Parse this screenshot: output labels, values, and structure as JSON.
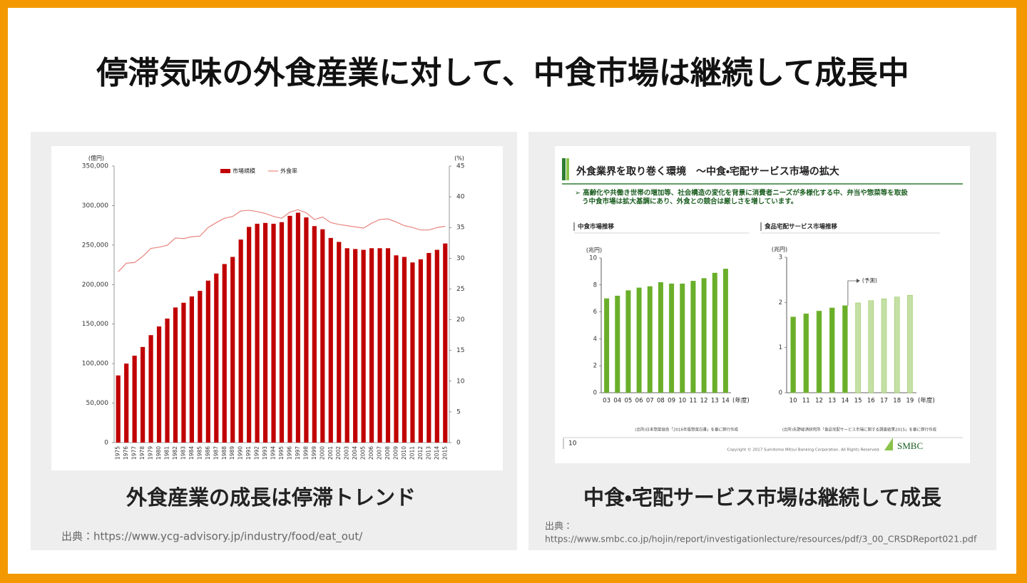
{
  "title": "停滞気味の外食産業に対して、中食市場は継続して成長中",
  "panels": [
    {
      "caption": "外食産業の成長は停滞トレンド",
      "source": "出典：https://www.ycg-advisory.jp/industry/food/eat_out/"
    },
    {
      "caption": "中食・宅配サービス市場は継続して成長",
      "source_label": "出典：",
      "source_url": "https://www.smbc.co.jp/hojin/report/investigationlecture/resources/pdf/3_00_CRSDReport021.pdf"
    }
  ],
  "slide": {
    "header": "外食業界を取り巻く環境　～中食・宅配サービス市場の拡大",
    "bullets": [
      "➢ 高齢化や共働き世帯の増加等、社会構造の変化を背景に消費者ニーズが多様化する中、弁当や惣菜等を取扱",
      "う中食市場は拡大基調にあり、外食との競合は厳しさを増しています。"
    ],
    "page_number": "10",
    "copyright": "Copyright © 2017 Sumitomo Mitsui Banking Corporation. All Rights Reserved.",
    "logo": "SMBC"
  },
  "chart_data": [
    {
      "type": "combo",
      "categories": [
        "1975",
        "1976",
        "1977",
        "1978",
        "1979",
        "1980",
        "1981",
        "1982",
        "1983",
        "1984",
        "1985",
        "1986",
        "1987",
        "1988",
        "1989",
        "1990",
        "1991",
        "1992",
        "1993",
        "1994",
        "1995",
        "1996",
        "1997",
        "1998",
        "1999",
        "2000",
        "2001",
        "2002",
        "2003",
        "2004",
        "2005",
        "2006",
        "2007",
        "2008",
        "2009",
        "2010",
        "2011",
        "2012",
        "2013",
        "2014",
        "2015"
      ],
      "y_label": "(億円)",
      "y2_label": "(%)",
      "series": [
        {
          "name": "市場規模",
          "color": "#c00000",
          "values": [
            85000,
            100000,
            110000,
            121000,
            136000,
            147000,
            157000,
            171000,
            177000,
            185000,
            192000,
            205000,
            214000,
            226000,
            235000,
            257000,
            273000,
            277000,
            278000,
            277000,
            279000,
            287000,
            291000,
            285000,
            274000,
            270000,
            259000,
            254000,
            246000,
            245000,
            244000,
            246000,
            246000,
            246000,
            237000,
            235000,
            228000,
            232000,
            240000,
            244000,
            252000
          ]
        },
        {
          "name": "外食率",
          "color": "#e8857f",
          "axis": "y2",
          "values": [
            27.8,
            29.2,
            29.3,
            30.3,
            31.6,
            31.8,
            32.1,
            33.3,
            33.2,
            33.5,
            33.6,
            35.0,
            35.8,
            36.5,
            36.8,
            37.7,
            37.8,
            37.6,
            37.3,
            36.8,
            36.5,
            37.5,
            37.9,
            37.4,
            36.3,
            36.7,
            35.8,
            35.5,
            35.3,
            35.1,
            34.9,
            35.7,
            36.3,
            36.4,
            35.9,
            35.3,
            35.0,
            34.6,
            34.6,
            35.0,
            35.2
          ]
        }
      ],
      "ylim": [
        0,
        350000
      ],
      "yticks": [
        0,
        {
          "value": 50000,
          "label": "50,000"
        },
        {
          "value": 100000,
          "label": "100,000"
        },
        {
          "value": 150000,
          "label": "150,000"
        },
        {
          "value": 200000,
          "label": "200,000"
        },
        {
          "value": 250000,
          "label": "250,000"
        },
        {
          "value": 300000,
          "label": "300,000"
        },
        {
          "value": 350000,
          "label": "350,000"
        }
      ],
      "y2lim": [
        0,
        45
      ],
      "y2ticks": [
        0,
        5,
        10,
        15,
        20,
        25,
        30,
        35,
        40,
        45
      ],
      "legend": "top"
    },
    {
      "type": "bar",
      "title": "中食市場推移",
      "y_label": "(兆円)",
      "x_unit": "(年度)",
      "categories": [
        "03",
        "04",
        "05",
        "06",
        "07",
        "08",
        "09",
        "10",
        "11",
        "12",
        "13",
        "14"
      ],
      "values": [
        7.0,
        7.2,
        7.6,
        7.8,
        7.9,
        8.2,
        8.1,
        8.1,
        8.3,
        8.5,
        8.9,
        9.2
      ],
      "color": "#6aaf2a",
      "ylim": [
        0,
        10
      ],
      "yticks": [
        0,
        2,
        4,
        6,
        8,
        10
      ],
      "source": "(出所)日本惣菜協会「2016年版惣菜白書」を基に弊行作成"
    },
    {
      "type": "bar",
      "title": "食品宅配サービス市場推移",
      "y_label": "(兆円)",
      "x_unit": "(年度)",
      "categories": [
        "10",
        "11",
        "12",
        "13",
        "14",
        "15",
        "16",
        "17",
        "18",
        "19"
      ],
      "values": [
        1.68,
        1.75,
        1.81,
        1.88,
        1.93,
        1.99,
        2.04,
        2.08,
        2.12,
        2.16
      ],
      "colors": [
        "#6aaf2a",
        "#6aaf2a",
        "#6aaf2a",
        "#6aaf2a",
        "#6aaf2a",
        "#c5e0a5",
        "#c5e0a5",
        "#c5e0a5",
        "#c5e0a5",
        "#c5e0a5"
      ],
      "annotation": "(予測)",
      "ylim": [
        0,
        3
      ],
      "yticks": [
        0,
        1,
        2,
        3
      ],
      "source": "(出所)矢野経済研究所「食品宅配サービス市場に関する調査結果2015」を基に弊行作成"
    }
  ]
}
